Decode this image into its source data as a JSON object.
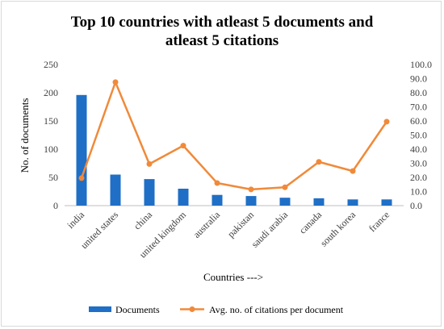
{
  "chart_data": {
    "type": "bar+line",
    "title_lines": [
      "Top 10 countries with atleast 5 documents and",
      "atleast 5 citations"
    ],
    "xlabel": "Countries --->",
    "ylabel": "No. of documents",
    "categories": [
      "india",
      "united states",
      "china",
      "united kingdom",
      "australia",
      "pakistan",
      "saudi arabia",
      "canada",
      "south korea",
      "france"
    ],
    "ylim_left": [
      0,
      250
    ],
    "yticks_left": [
      "0",
      "50",
      "100",
      "150",
      "200",
      "250"
    ],
    "ylim_right": [
      0,
      100
    ],
    "yticks_right": [
      "0.0",
      "10.0",
      "20.0",
      "30.0",
      "40.0",
      "50.0",
      "60.0",
      "70.0",
      "80.0",
      "90.0",
      "100.0"
    ],
    "series": [
      {
        "name": "Documents",
        "type": "bar",
        "axis": "left",
        "color": "#1f6fc6",
        "values": [
          196,
          55,
          47,
          30,
          19,
          17,
          14,
          13,
          11,
          11
        ]
      },
      {
        "name": "Avg. no. of citations per document",
        "type": "line",
        "axis": "right",
        "color": "#f08a3a",
        "values": [
          19.5,
          87.5,
          29.5,
          42.5,
          16.0,
          11.5,
          13.0,
          31.0,
          24.5,
          59.5
        ]
      }
    ],
    "grid": false,
    "legend_position": "bottom"
  }
}
